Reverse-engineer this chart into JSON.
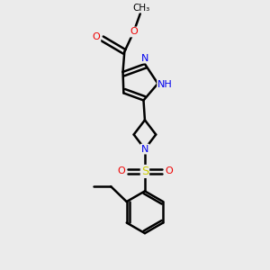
{
  "background_color": "#ebebeb",
  "bond_color": "#000000",
  "bond_width": 1.8,
  "atom_colors": {
    "N": "#0000ee",
    "O": "#ee0000",
    "S": "#cccc00",
    "C": "#000000",
    "H": "#888888"
  },
  "font_size": 8.0,
  "fig_width": 3.0,
  "fig_height": 3.0
}
